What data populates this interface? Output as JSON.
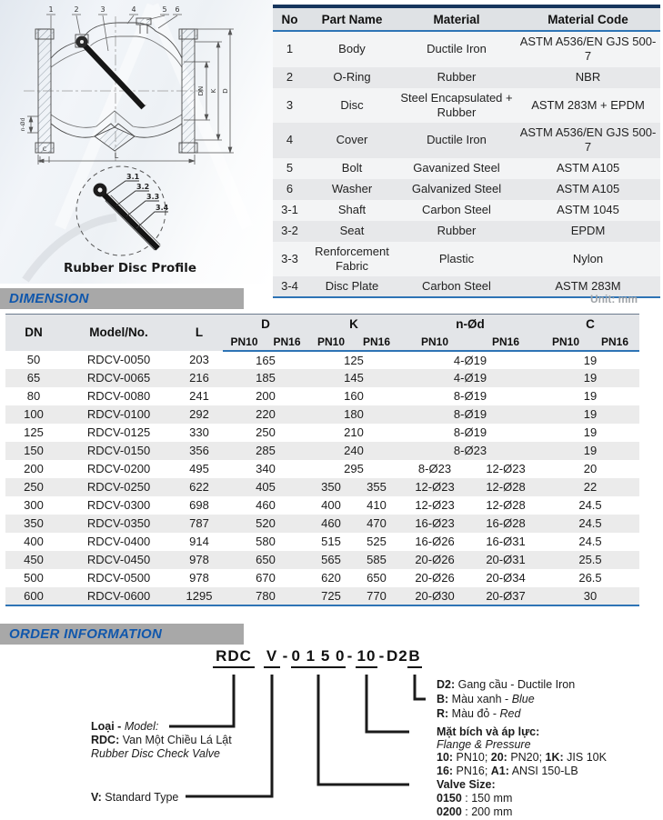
{
  "colors": {
    "accent_blue": "#1057ac",
    "bar_gray": "#a8a8a8",
    "navy_border": "#17365d",
    "blue_line": "#2e74b5"
  },
  "drawing": {
    "callouts": [
      "1",
      "2",
      "3",
      "4",
      "5",
      "6"
    ],
    "dims": {
      "dn": "DN",
      "k": "K",
      "d": "D",
      "l": "L",
      "c": "C",
      "nod": "n-Ød"
    },
    "profile": {
      "labels": [
        "3.1",
        "3.2",
        "3.3",
        "3.4"
      ],
      "caption": "Rubber Disc Profile"
    }
  },
  "parts_table": {
    "headers": [
      "No",
      "Part Name",
      "Material",
      "Material Code"
    ],
    "rows": [
      [
        "1",
        "Body",
        "Ductile Iron",
        "ASTM A536/EN GJS 500-7"
      ],
      [
        "2",
        "O-Ring",
        "Rubber",
        "NBR"
      ],
      [
        "3",
        "Disc",
        "Steel Encapsulated + Rubber",
        "ASTM 283M + EPDM"
      ],
      [
        "4",
        "Cover",
        "Ductile Iron",
        "ASTM A536/EN GJS 500-7"
      ],
      [
        "5",
        "Bolt",
        "Gavanized Steel",
        "ASTM A105"
      ],
      [
        "6",
        "Washer",
        "Galvanized Steel",
        "ASTM A105"
      ],
      [
        "3-1",
        "Shaft",
        "Carbon Steel",
        "ASTM 1045"
      ],
      [
        "3-2",
        "Seat",
        "Rubber",
        "EPDM"
      ],
      [
        "3-3",
        "Renforcement Fabric",
        "Plastic",
        "Nylon"
      ],
      [
        "3-4",
        "Disc Plate",
        "Carbon Steel",
        "ASTM 283M"
      ]
    ]
  },
  "dimension_section": {
    "title": "DIMENSION",
    "unit_label": "Unit: mm",
    "header": {
      "dn": "DN",
      "model": "Model/No.",
      "l": "L",
      "d": "D",
      "k": "K",
      "nod": "n-Ød",
      "c": "C",
      "pn10": "PN10",
      "pn16": "PN16"
    },
    "rows": [
      {
        "dn": "50",
        "model": "RDCV-0050",
        "l": "203",
        "d": [
          "165"
        ],
        "k": [
          "125"
        ],
        "nod": [
          "4-Ø19"
        ],
        "c": [
          "19"
        ]
      },
      {
        "dn": "65",
        "model": "RDCV-0065",
        "l": "216",
        "d": [
          "185"
        ],
        "k": [
          "145"
        ],
        "nod": [
          "4-Ø19"
        ],
        "c": [
          "19"
        ]
      },
      {
        "dn": "80",
        "model": "RDCV-0080",
        "l": "241",
        "d": [
          "200"
        ],
        "k": [
          "160"
        ],
        "nod": [
          "8-Ø19"
        ],
        "c": [
          "19"
        ]
      },
      {
        "dn": "100",
        "model": "RDCV-0100",
        "l": "292",
        "d": [
          "220"
        ],
        "k": [
          "180"
        ],
        "nod": [
          "8-Ø19"
        ],
        "c": [
          "19"
        ]
      },
      {
        "dn": "125",
        "model": "RDCV-0125",
        "l": "330",
        "d": [
          "250"
        ],
        "k": [
          "210"
        ],
        "nod": [
          "8-Ø19"
        ],
        "c": [
          "19"
        ]
      },
      {
        "dn": "150",
        "model": "RDCV-0150",
        "l": "356",
        "d": [
          "285"
        ],
        "k": [
          "240"
        ],
        "nod": [
          "8-Ø23"
        ],
        "c": [
          "19"
        ]
      },
      {
        "dn": "200",
        "model": "RDCV-0200",
        "l": "495",
        "d": [
          "340"
        ],
        "k": [
          "295"
        ],
        "nod": [
          "8-Ø23",
          "12-Ø23"
        ],
        "c": [
          "20"
        ]
      },
      {
        "dn": "250",
        "model": "RDCV-0250",
        "l": "622",
        "d": [
          "405"
        ],
        "k": [
          "350",
          "355"
        ],
        "nod": [
          "12-Ø23",
          "12-Ø28"
        ],
        "c": [
          "22"
        ]
      },
      {
        "dn": "300",
        "model": "RDCV-0300",
        "l": "698",
        "d": [
          "460"
        ],
        "k": [
          "400",
          "410"
        ],
        "nod": [
          "12-Ø23",
          "12-Ø28"
        ],
        "c": [
          "24.5"
        ]
      },
      {
        "dn": "350",
        "model": "RDCV-0350",
        "l": "787",
        "d": [
          "520"
        ],
        "k": [
          "460",
          "470"
        ],
        "nod": [
          "16-Ø23",
          "16-Ø28"
        ],
        "c": [
          "24.5"
        ]
      },
      {
        "dn": "400",
        "model": "RDCV-0400",
        "l": "914",
        "d": [
          "580"
        ],
        "k": [
          "515",
          "525"
        ],
        "nod": [
          "16-Ø26",
          "16-Ø31"
        ],
        "c": [
          "24.5"
        ]
      },
      {
        "dn": "450",
        "model": "RDCV-0450",
        "l": "978",
        "d": [
          "650"
        ],
        "k": [
          "565",
          "585"
        ],
        "nod": [
          "20-Ø26",
          "20-Ø31"
        ],
        "c": [
          "25.5"
        ]
      },
      {
        "dn": "500",
        "model": "RDCV-0500",
        "l": "978",
        "d": [
          "670"
        ],
        "k": [
          "620",
          "650"
        ],
        "nod": [
          "20-Ø26",
          "20-Ø34"
        ],
        "c": [
          "26.5"
        ]
      },
      {
        "dn": "600",
        "model": "RDCV-0600",
        "l": "1295",
        "d": [
          "780"
        ],
        "k": [
          "725",
          "770"
        ],
        "nod": [
          "20-Ø30",
          "20-Ø37"
        ],
        "c": [
          "30"
        ]
      }
    ]
  },
  "order_section": {
    "title": "ORDER INFORMATION",
    "code_segments": [
      {
        "t": "RDC",
        "u": true
      },
      {
        "t": "V",
        "u": true
      },
      {
        "t": "-"
      },
      {
        "t": "0 1 5 0",
        "u": true
      },
      {
        "t": "-"
      },
      {
        "t": "10",
        "u": true
      },
      {
        "t": "-"
      },
      {
        "t": "D2"
      },
      {
        "t": "B",
        "u": true
      }
    ],
    "left_labels": {
      "model": [
        {
          "t": "Loại - ",
          "b": true
        },
        {
          "t": "Model:",
          "i": true
        }
      ],
      "rdc": [
        {
          "t": "RDC:",
          "b": true
        },
        {
          "t": " Van Một Chiều Lá Lật"
        }
      ],
      "rdc_en": [
        {
          "t": "Rubber Disc Check Valve",
          "i": true
        }
      ],
      "v": [
        {
          "t": "V:",
          "b": true
        },
        {
          "t": " Standard Type"
        }
      ]
    },
    "right_labels": {
      "d2": [
        {
          "t": "D2:",
          "b": true
        },
        {
          "t": " Gang cầu - Ductile Iron"
        }
      ],
      "b": [
        {
          "t": "B:",
          "b": true
        },
        {
          "t": " Màu xanh - "
        },
        {
          "t": "Blue",
          "i": true
        }
      ],
      "r": [
        {
          "t": "R:",
          "b": true
        },
        {
          "t": " Màu đỏ - "
        },
        {
          "t": "Red",
          "i": true
        }
      ],
      "flange_title": [
        {
          "t": "Mặt bích và áp lực:",
          "b": true
        }
      ],
      "flange_sub": [
        {
          "t": "Flange & Pressure",
          "i": true
        }
      ],
      "flange_l1": [
        {
          "t": "10:",
          "b": true
        },
        {
          "t": " PN10; "
        },
        {
          "t": "20:",
          "b": true
        },
        {
          "t": " PN20; "
        },
        {
          "t": "1K:",
          "b": true
        },
        {
          "t": " JIS 10K"
        }
      ],
      "flange_l2": [
        {
          "t": "16:",
          "b": true
        },
        {
          "t": " PN16; "
        },
        {
          "t": "A1:",
          "b": true
        },
        {
          "t": " ANSI 150-LB"
        }
      ],
      "size_title": [
        {
          "t": "Valve Size:",
          "b": true
        }
      ],
      "size_l1": [
        {
          "t": "0150",
          "b": true
        },
        {
          "t": " : 150 mm"
        }
      ],
      "size_l2": [
        {
          "t": "0200",
          "b": true
        },
        {
          "t": " : 200 mm"
        }
      ]
    }
  }
}
